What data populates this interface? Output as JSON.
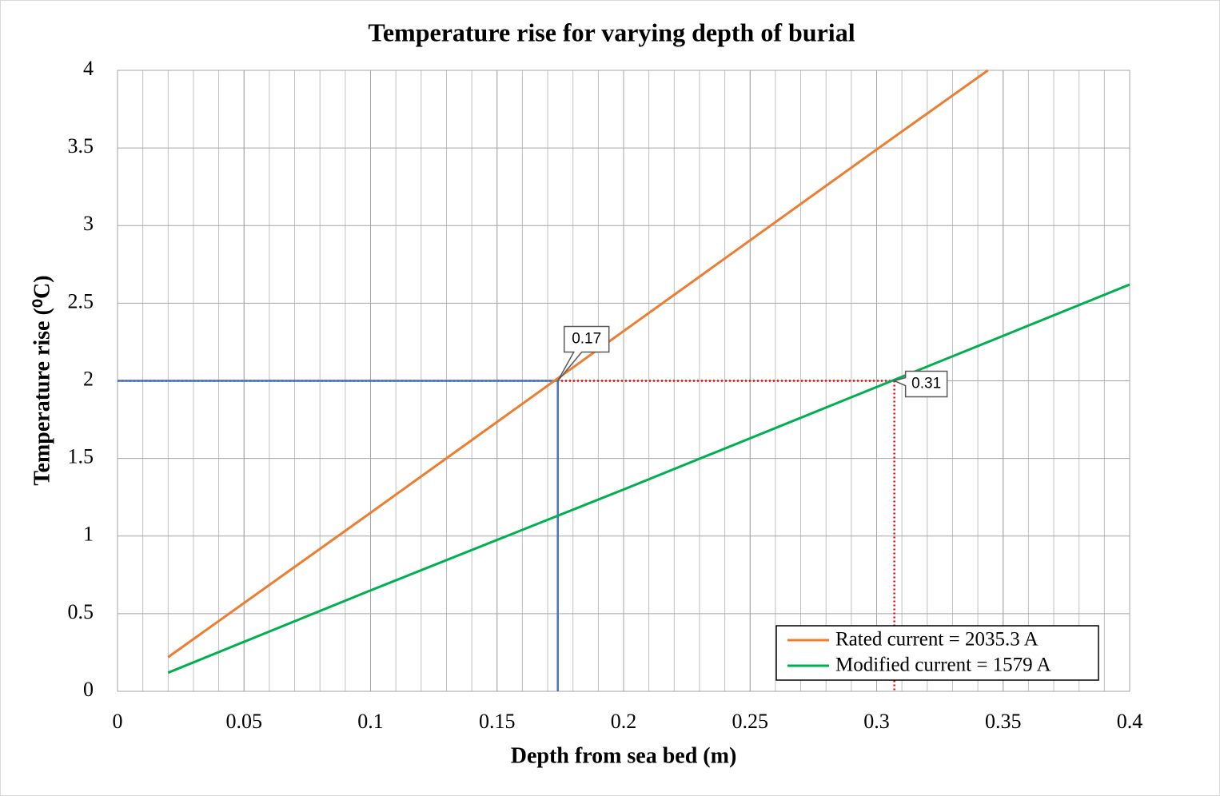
{
  "chart_data": {
    "type": "line",
    "title": "Temperature rise for varying depth of burial",
    "x_label": "Depth from sea bed (m)",
    "y_label": "Temperature rise (⁰C)",
    "series": [
      {
        "name": "Rated current = 2035.3 A",
        "color": "#ed7d31",
        "x": [
          0.02,
          0.1,
          0.2,
          0.3,
          0.344
        ],
        "values": [
          0.22,
          1.15,
          2.32,
          3.49,
          4.0
        ]
      },
      {
        "name": "Modified current = 1579 A",
        "color": "#00b050",
        "x": [
          0.02,
          0.1,
          0.2,
          0.3,
          0.4
        ],
        "values": [
          0.12,
          0.65,
          1.3,
          1.96,
          2.62
        ]
      }
    ],
    "reference_lines": [
      {
        "x": 0.307,
        "y": 2,
        "color": "#ff0000",
        "style": "dotted"
      },
      {
        "x": 0.174,
        "y": 2,
        "color": "#4472c4",
        "style": "solid"
      }
    ],
    "annotations": [
      {
        "text": "0.17",
        "x": 0.174,
        "y": 2
      },
      {
        "text": "0.31",
        "x": 0.307,
        "y": 2
      }
    ],
    "xlim": [
      0,
      0.4
    ],
    "xticks": [
      0,
      0.05,
      0.1,
      0.15,
      0.2,
      0.25,
      0.3,
      0.35,
      0.4
    ],
    "ylim": [
      0,
      4
    ],
    "yticks": [
      0,
      0.5,
      1,
      1.5,
      2,
      2.5,
      3,
      3.5,
      4
    ],
    "x_minor_grid_step": 0.01,
    "grid": true,
    "legend": "lower right"
  }
}
